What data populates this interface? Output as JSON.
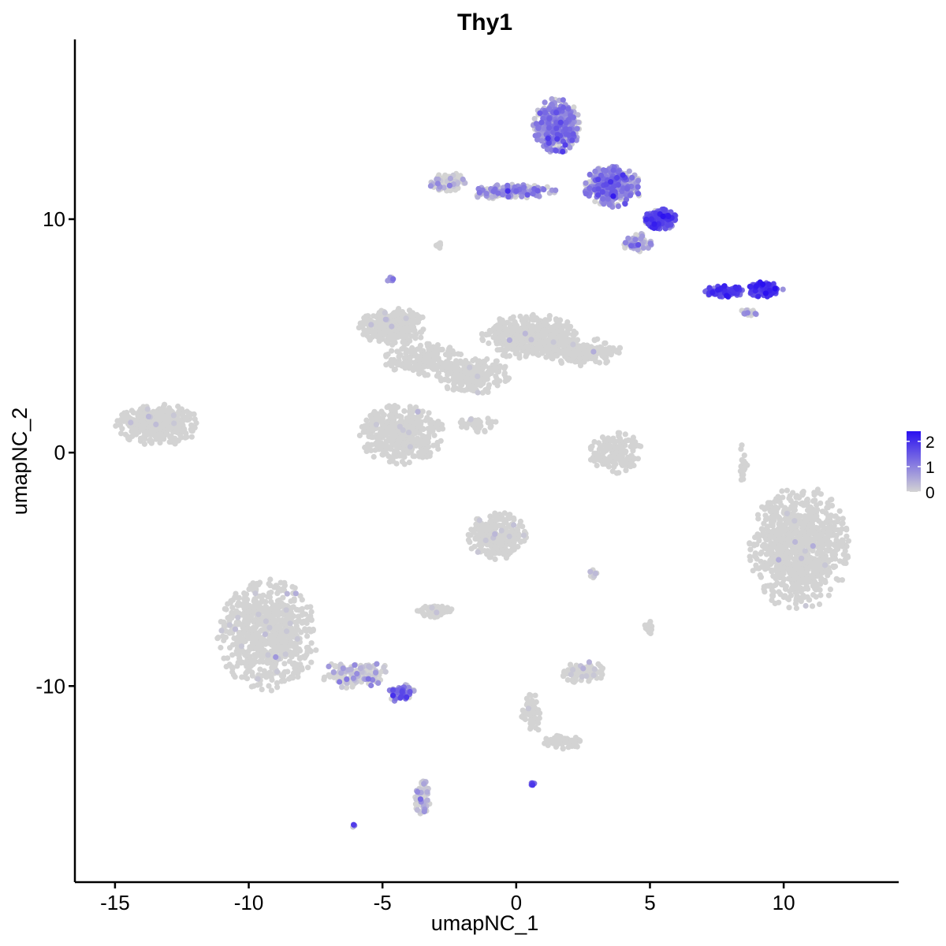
{
  "chart_data": {
    "type": "scatter",
    "title": "Thy1",
    "xlabel": "umapNC_1",
    "ylabel": "umapNC_2",
    "xlim": [
      -16.5,
      14.3
    ],
    "ylim": [
      -18.4,
      17.7
    ],
    "x_ticks": [
      -15,
      -10,
      -5,
      0,
      5,
      10
    ],
    "x_tick_labels": [
      "-15",
      "-10",
      "-5",
      "0",
      "5",
      "10"
    ],
    "y_ticks": [
      -10,
      0,
      10
    ],
    "y_tick_labels": [
      "-10",
      "0",
      "10"
    ],
    "grid": false,
    "legend": {
      "placement": "right",
      "min": 0,
      "max": 2.4,
      "ticks": [
        0,
        1,
        2
      ],
      "tick_labels": [
        "0",
        "1",
        "2"
      ],
      "color_low": "#d3d3d3",
      "color_high": "#2a10f0"
    },
    "clusters": [
      {
        "cx": 1.5,
        "cy": 14.0,
        "rx": 0.9,
        "ry": 1.2,
        "n": 420,
        "expr": 0.8,
        "frac": 0.8
      },
      {
        "cx": 3.6,
        "cy": 11.4,
        "rx": 1.1,
        "ry": 0.9,
        "n": 380,
        "expr": 0.9,
        "frac": 0.75
      },
      {
        "cx": 5.4,
        "cy": 10.0,
        "rx": 0.6,
        "ry": 0.45,
        "n": 220,
        "expr": 1.4,
        "frac": 0.9
      },
      {
        "cx": 4.5,
        "cy": 9.0,
        "rx": 0.6,
        "ry": 0.4,
        "n": 80,
        "expr": 0.6,
        "frac": 0.5
      },
      {
        "cx": 0.0,
        "cy": 11.2,
        "rx": 1.6,
        "ry": 0.3,
        "n": 150,
        "expr": 0.7,
        "frac": 0.6
      },
      {
        "cx": -2.6,
        "cy": 11.6,
        "rx": 0.7,
        "ry": 0.4,
        "n": 90,
        "expr": 0.3,
        "frac": 0.25
      },
      {
        "cx": -1.0,
        "cy": 11.1,
        "rx": 0.6,
        "ry": 0.25,
        "n": 50,
        "expr": 0.4,
        "frac": 0.4
      },
      {
        "cx": 7.8,
        "cy": 6.9,
        "rx": 0.8,
        "ry": 0.25,
        "n": 100,
        "expr": 1.5,
        "frac": 0.95
      },
      {
        "cx": 9.3,
        "cy": 7.0,
        "rx": 0.7,
        "ry": 0.35,
        "n": 110,
        "expr": 1.6,
        "frac": 0.95
      },
      {
        "cx": 8.7,
        "cy": 6.0,
        "rx": 0.3,
        "ry": 0.2,
        "n": 15,
        "expr": 0.8,
        "frac": 0.6
      },
      {
        "cx": -4.6,
        "cy": 5.4,
        "rx": 1.3,
        "ry": 0.8,
        "n": 300,
        "expr": 0,
        "frac": 0.01
      },
      {
        "cx": -3.5,
        "cy": 4.0,
        "rx": 1.5,
        "ry": 0.7,
        "n": 200,
        "expr": 0,
        "frac": 0.01
      },
      {
        "cx": 0.5,
        "cy": 5.0,
        "rx": 1.8,
        "ry": 1.0,
        "n": 420,
        "expr": 0,
        "frac": 0.01
      },
      {
        "cx": 2.5,
        "cy": 4.3,
        "rx": 1.5,
        "ry": 0.6,
        "n": 220,
        "expr": 0,
        "frac": 0.01
      },
      {
        "cx": -1.6,
        "cy": 3.3,
        "rx": 1.4,
        "ry": 0.8,
        "n": 220,
        "expr": 0,
        "frac": 0.01
      },
      {
        "cx": -4.3,
        "cy": 0.8,
        "rx": 1.6,
        "ry": 1.3,
        "n": 420,
        "expr": 0,
        "frac": 0.01
      },
      {
        "cx": -13.4,
        "cy": 1.2,
        "rx": 1.6,
        "ry": 0.9,
        "n": 360,
        "expr": 0,
        "frac": 0.01
      },
      {
        "cx": 3.7,
        "cy": 0.0,
        "rx": 1.0,
        "ry": 0.9,
        "n": 160,
        "expr": 0,
        "frac": 0.01
      },
      {
        "cx": 10.6,
        "cy": -4.1,
        "rx": 1.9,
        "ry": 2.7,
        "n": 900,
        "expr": 0,
        "frac": 0.01
      },
      {
        "cx": -9.3,
        "cy": -7.8,
        "rx": 1.9,
        "ry": 2.4,
        "n": 700,
        "expr": 0,
        "frac": 0.02
      },
      {
        "cx": -6.0,
        "cy": -9.5,
        "rx": 1.4,
        "ry": 0.6,
        "n": 140,
        "expr": 0.3,
        "frac": 0.3
      },
      {
        "cx": -4.3,
        "cy": -10.3,
        "rx": 0.5,
        "ry": 0.4,
        "n": 60,
        "expr": 1.1,
        "frac": 0.8
      },
      {
        "cx": -3.5,
        "cy": -14.8,
        "rx": 0.3,
        "ry": 0.8,
        "n": 70,
        "expr": 0.3,
        "frac": 0.4
      },
      {
        "cx": -0.7,
        "cy": -3.6,
        "rx": 1.1,
        "ry": 1.1,
        "n": 260,
        "expr": 0,
        "frac": 0.05
      },
      {
        "cx": -3.0,
        "cy": -6.8,
        "rx": 0.7,
        "ry": 0.3,
        "n": 70,
        "expr": 0,
        "frac": 0.02
      },
      {
        "cx": 2.5,
        "cy": -9.4,
        "rx": 0.8,
        "ry": 0.5,
        "n": 90,
        "expr": 0.2,
        "frac": 0.1
      },
      {
        "cx": 0.6,
        "cy": -11.2,
        "rx": 0.4,
        "ry": 0.9,
        "n": 60,
        "expr": 0,
        "frac": 0.03
      },
      {
        "cx": 1.8,
        "cy": -12.4,
        "rx": 0.8,
        "ry": 0.3,
        "n": 60,
        "expr": 0,
        "frac": 0.02
      },
      {
        "cx": 2.9,
        "cy": -5.2,
        "rx": 0.2,
        "ry": 0.2,
        "n": 10,
        "expr": 0.4,
        "frac": 0.4
      },
      {
        "cx": 5.0,
        "cy": -7.5,
        "rx": 0.2,
        "ry": 0.3,
        "n": 15,
        "expr": 0,
        "frac": 0.02
      },
      {
        "cx": 8.5,
        "cy": -0.5,
        "rx": 0.15,
        "ry": 1.0,
        "n": 25,
        "expr": 0,
        "frac": 0.05
      },
      {
        "cx": -1.5,
        "cy": 1.2,
        "rx": 0.8,
        "ry": 0.4,
        "n": 40,
        "expr": 0,
        "frac": 0.03
      },
      {
        "cx": 0.6,
        "cy": -14.2,
        "rx": 0.1,
        "ry": 0.1,
        "n": 6,
        "expr": 1.5,
        "frac": 1.0
      },
      {
        "cx": -4.7,
        "cy": 7.4,
        "rx": 0.15,
        "ry": 0.15,
        "n": 8,
        "expr": 0.7,
        "frac": 0.6
      },
      {
        "cx": -2.9,
        "cy": 8.9,
        "rx": 0.1,
        "ry": 0.2,
        "n": 6,
        "expr": 0,
        "frac": 0.0
      },
      {
        "cx": -6.1,
        "cy": -16.0,
        "rx": 0.08,
        "ry": 0.08,
        "n": 3,
        "expr": 0.8,
        "frac": 1.0
      }
    ]
  }
}
